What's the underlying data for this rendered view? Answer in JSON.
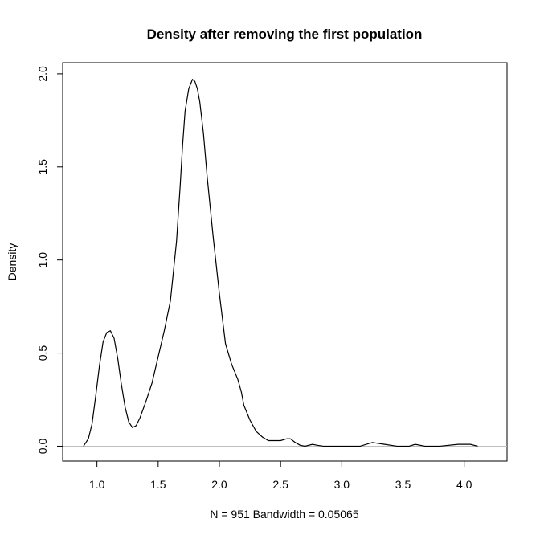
{
  "chart_data": {
    "type": "line",
    "title": "Density after removing the first population",
    "xlabel": "N = 951   Bandwidth = 0.05065",
    "ylabel": "Density",
    "xlim": [
      0.72,
      4.35
    ],
    "ylim": [
      -0.08,
      2.06
    ],
    "x_ticks": [
      {
        "value": 1.0,
        "label": "1.0"
      },
      {
        "value": 1.5,
        "label": "1.5"
      },
      {
        "value": 2.0,
        "label": "2.0"
      },
      {
        "value": 2.5,
        "label": "2.5"
      },
      {
        "value": 3.0,
        "label": "3.0"
      },
      {
        "value": 3.5,
        "label": "3.5"
      },
      {
        "value": 4.0,
        "label": "4.0"
      }
    ],
    "y_ticks": [
      {
        "value": 0.0,
        "label": "0.0"
      },
      {
        "value": 0.5,
        "label": "0.5"
      },
      {
        "value": 1.0,
        "label": "1.0"
      },
      {
        "value": 1.5,
        "label": "1.5"
      },
      {
        "value": 2.0,
        "label": "2.0"
      }
    ],
    "baseline": 0.0,
    "baseline_color": "#bebebe",
    "line_color": "#000000",
    "series": [
      {
        "x": [
          0.89,
          0.93,
          0.96,
          0.99,
          1.02,
          1.05,
          1.08,
          1.11,
          1.14,
          1.17,
          1.2,
          1.23,
          1.26,
          1.29,
          1.32,
          1.35,
          1.4,
          1.45,
          1.5,
          1.55,
          1.6,
          1.65,
          1.68,
          1.7,
          1.72,
          1.75,
          1.78,
          1.8,
          1.82,
          1.84,
          1.87,
          1.9,
          1.95,
          2.0,
          2.05,
          2.1,
          2.15,
          2.18,
          2.2,
          2.25,
          2.3,
          2.35,
          2.4,
          2.45,
          2.5,
          2.55,
          2.58,
          2.62,
          2.66,
          2.7,
          2.76,
          2.8,
          2.85,
          3.0,
          3.15,
          3.25,
          3.35,
          3.45,
          3.55,
          3.6,
          3.68,
          3.8,
          3.95,
          4.05,
          4.11
        ],
        "y": [
          0.0,
          0.04,
          0.12,
          0.27,
          0.43,
          0.56,
          0.61,
          0.62,
          0.58,
          0.47,
          0.33,
          0.21,
          0.13,
          0.1,
          0.11,
          0.15,
          0.24,
          0.34,
          0.48,
          0.62,
          0.78,
          1.1,
          1.4,
          1.62,
          1.8,
          1.92,
          1.97,
          1.96,
          1.92,
          1.85,
          1.68,
          1.45,
          1.12,
          0.82,
          0.55,
          0.44,
          0.36,
          0.29,
          0.22,
          0.14,
          0.08,
          0.05,
          0.03,
          0.03,
          0.03,
          0.04,
          0.04,
          0.02,
          0.005,
          0.0,
          0.01,
          0.005,
          0.0,
          0.0,
          0.0,
          0.02,
          0.01,
          0.0,
          0.0,
          0.01,
          0.0,
          0.0,
          0.01,
          0.01,
          0.0
        ]
      }
    ]
  }
}
